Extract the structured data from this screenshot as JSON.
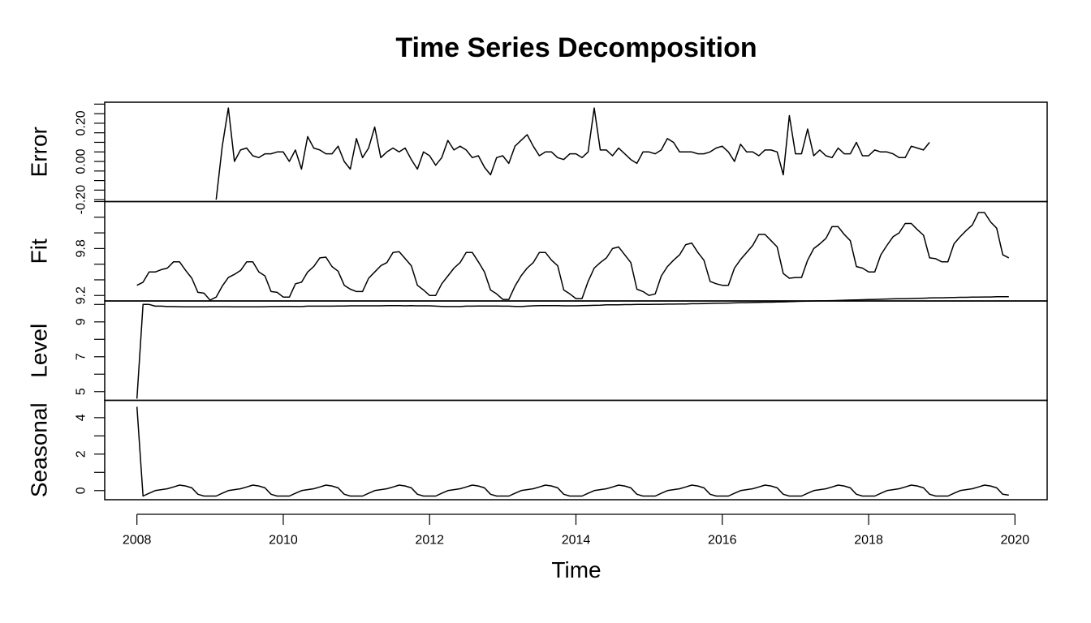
{
  "chart_data": {
    "type": "line",
    "title": "Time Series Decomposition",
    "xlabel": "Time",
    "xlim": [
      2007.56,
      2020.44
    ],
    "x_ticks": [
      2008,
      2010,
      2012,
      2014,
      2016,
      2018,
      2020
    ],
    "x_tick_labels": [
      "2008",
      "2010",
      "2012",
      "2014",
      "2016",
      "2018",
      "2020"
    ],
    "frequency": 12,
    "panels": [
      {
        "name": "Error",
        "ylabel": "Error",
        "ylim": [
          -0.21,
          0.31
        ],
        "y_major_ticks": [
          -0.2,
          0,
          0.2
        ],
        "y_major_labels": [
          "-0.20",
          "0.00",
          "0.20"
        ],
        "y_minor_ticks": [
          -0.15,
          -0.1,
          -0.05,
          0.05,
          0.1,
          0.15,
          0.25,
          0.3
        ],
        "start": 2009.083,
        "values": [
          -0.2,
          0.08,
          0.28,
          0.0,
          0.06,
          0.07,
          0.03,
          0.02,
          0.04,
          0.04,
          0.05,
          0.05,
          0.0,
          0.06,
          -0.04,
          0.13,
          0.07,
          0.06,
          0.04,
          0.04,
          0.08,
          0.0,
          -0.04,
          0.12,
          0.02,
          0.07,
          0.18,
          0.02,
          0.05,
          0.07,
          0.05,
          0.07,
          0.01,
          -0.04,
          0.05,
          0.03,
          -0.02,
          0.02,
          0.11,
          0.06,
          0.08,
          0.06,
          0.02,
          0.03,
          -0.03,
          -0.07,
          0.02,
          0.03,
          -0.01,
          0.08,
          0.11,
          0.14,
          0.08,
          0.03,
          0.05,
          0.05,
          0.02,
          0.01,
          0.04,
          0.04,
          0.02,
          0.05,
          0.28,
          0.06,
          0.06,
          0.03,
          0.07,
          0.04,
          0.01,
          -0.01,
          0.05,
          0.05,
          0.04,
          0.06,
          0.12,
          0.1,
          0.05,
          0.05,
          0.05,
          0.04,
          0.04,
          0.05,
          0.07,
          0.08,
          0.05,
          0.0,
          0.09,
          0.05,
          0.05,
          0.03,
          0.06,
          0.06,
          0.05,
          -0.07,
          0.24,
          0.04,
          0.04,
          0.17,
          0.03,
          0.06,
          0.03,
          0.02,
          0.07,
          0.04,
          0.04,
          0.1,
          0.03,
          0.03,
          0.06,
          0.05,
          0.05,
          0.04,
          0.02,
          0.02,
          0.08,
          0.07,
          0.06,
          0.1
        ]
      },
      {
        "name": "Fit",
        "ylabel": "Fit",
        "ylim": [
          9.13,
          10.4
        ],
        "y_major_ticks": [
          9.2,
          9.8
        ],
        "y_major_labels": [
          "9.2",
          "9.8"
        ],
        "y_minor_ticks": [
          9.4,
          9.6,
          10.0,
          10.2,
          10.4
        ],
        "start": 2008.0,
        "values": [
          9.33,
          9.37,
          9.5,
          9.5,
          9.53,
          9.55,
          9.63,
          9.63,
          9.52,
          9.42,
          9.24,
          9.23,
          9.14,
          9.18,
          9.32,
          9.43,
          9.47,
          9.52,
          9.63,
          9.63,
          9.5,
          9.45,
          9.25,
          9.24,
          9.18,
          9.18,
          9.35,
          9.37,
          9.5,
          9.57,
          9.68,
          9.69,
          9.57,
          9.51,
          9.33,
          9.28,
          9.25,
          9.25,
          9.42,
          9.5,
          9.58,
          9.62,
          9.75,
          9.76,
          9.67,
          9.58,
          9.33,
          9.27,
          9.2,
          9.2,
          9.35,
          9.45,
          9.55,
          9.62,
          9.75,
          9.75,
          9.63,
          9.5,
          9.27,
          9.22,
          9.15,
          9.15,
          9.32,
          9.45,
          9.55,
          9.62,
          9.75,
          9.75,
          9.65,
          9.58,
          9.27,
          9.22,
          9.16,
          9.16,
          9.38,
          9.55,
          9.62,
          9.68,
          9.8,
          9.82,
          9.72,
          9.62,
          9.28,
          9.25,
          9.2,
          9.22,
          9.45,
          9.57,
          9.65,
          9.72,
          9.85,
          9.87,
          9.75,
          9.65,
          9.38,
          9.35,
          9.33,
          9.33,
          9.55,
          9.66,
          9.75,
          9.84,
          9.98,
          9.98,
          9.9,
          9.82,
          9.48,
          9.42,
          9.43,
          9.43,
          9.65,
          9.8,
          9.86,
          9.93,
          10.08,
          10.08,
          9.98,
          9.9,
          9.57,
          9.55,
          9.5,
          9.5,
          9.72,
          9.84,
          9.95,
          10.0,
          10.12,
          10.12,
          10.04,
          9.97,
          9.68,
          9.67,
          9.63,
          9.63,
          9.86,
          9.95,
          10.03,
          10.1,
          10.26,
          10.26,
          10.14,
          10.06,
          9.72,
          9.68
        ]
      },
      {
        "name": "Level",
        "ylabel": "Level",
        "ylim": [
          4.5,
          10.2
        ],
        "y_major_ticks": [
          5,
          7,
          9
        ],
        "y_major_labels": [
          "5",
          "7",
          "9"
        ],
        "y_minor_ticks": [
          6,
          8,
          10
        ],
        "start": 2008.0,
        "values": [
          4.6,
          10.0,
          10.0,
          9.9,
          9.9,
          9.88,
          9.88,
          9.87,
          9.86,
          9.86,
          9.86,
          9.86,
          9.87,
          9.87,
          9.87,
          9.87,
          9.86,
          9.86,
          9.86,
          9.86,
          9.86,
          9.87,
          9.88,
          9.88,
          9.89,
          9.89,
          9.88,
          9.88,
          9.9,
          9.9,
          9.9,
          9.9,
          9.9,
          9.91,
          9.91,
          9.92,
          9.92,
          9.92,
          9.92,
          9.92,
          9.92,
          9.93,
          9.93,
          9.93,
          9.92,
          9.93,
          9.92,
          9.92,
          9.92,
          9.9,
          9.89,
          9.88,
          9.88,
          9.88,
          9.9,
          9.9,
          9.91,
          9.91,
          9.91,
          9.91,
          9.9,
          9.9,
          9.89,
          9.88,
          9.9,
          9.92,
          9.93,
          9.93,
          9.93,
          9.93,
          9.92,
          9.92,
          9.92,
          9.93,
          9.94,
          9.95,
          9.96,
          9.98,
          9.98,
          9.98,
          9.99,
          9.99,
          10.0,
          10.0,
          10.0,
          10.01,
          10.01,
          10.02,
          10.02,
          10.03,
          10.03,
          10.04,
          10.04,
          10.05,
          10.06,
          10.07,
          10.07,
          10.08,
          10.09,
          10.1,
          10.1,
          10.11,
          10.12,
          10.13,
          10.13,
          10.14,
          10.15,
          10.16,
          10.17,
          10.18,
          10.19,
          10.2,
          10.21,
          10.21,
          10.22,
          10.23,
          10.24,
          10.25,
          10.26,
          10.27,
          10.28,
          10.29,
          10.3,
          10.31,
          10.32,
          10.33,
          10.33,
          10.34,
          10.35,
          10.36,
          10.37,
          10.38,
          10.38,
          10.39,
          10.4,
          10.41,
          10.41,
          10.42,
          10.42,
          10.43,
          10.43,
          10.44,
          10.44,
          10.44
        ]
      },
      {
        "name": "Seasonal",
        "ylabel": "Seasonal",
        "ylim": [
          -0.5,
          4.95
        ],
        "y_major_ticks": [
          0,
          2,
          4
        ],
        "y_major_labels": [
          "0",
          "2",
          "4"
        ],
        "y_minor_ticks": [
          1,
          3
        ],
        "start": 2008.0,
        "values": [
          4.6,
          -0.3,
          -0.15,
          0.0,
          0.05,
          0.1,
          0.2,
          0.3,
          0.25,
          0.15,
          -0.2,
          -0.3,
          -0.3,
          -0.3,
          -0.15,
          0.0,
          0.05,
          0.1,
          0.2,
          0.3,
          0.25,
          0.15,
          -0.2,
          -0.3,
          -0.3,
          -0.3,
          -0.15,
          0.0,
          0.05,
          0.1,
          0.2,
          0.3,
          0.25,
          0.15,
          -0.2,
          -0.3,
          -0.3,
          -0.3,
          -0.15,
          0.0,
          0.05,
          0.1,
          0.2,
          0.3,
          0.25,
          0.15,
          -0.2,
          -0.3,
          -0.3,
          -0.3,
          -0.15,
          0.0,
          0.05,
          0.1,
          0.2,
          0.3,
          0.25,
          0.15,
          -0.2,
          -0.3,
          -0.3,
          -0.3,
          -0.15,
          0.0,
          0.05,
          0.1,
          0.2,
          0.3,
          0.25,
          0.15,
          -0.2,
          -0.3,
          -0.3,
          -0.3,
          -0.15,
          0.0,
          0.05,
          0.1,
          0.2,
          0.3,
          0.25,
          0.15,
          -0.2,
          -0.3,
          -0.3,
          -0.3,
          -0.15,
          0.0,
          0.05,
          0.1,
          0.2,
          0.3,
          0.25,
          0.15,
          -0.2,
          -0.3,
          -0.3,
          -0.3,
          -0.15,
          0.0,
          0.05,
          0.1,
          0.2,
          0.3,
          0.25,
          0.15,
          -0.2,
          -0.3,
          -0.3,
          -0.3,
          -0.15,
          0.0,
          0.05,
          0.1,
          0.2,
          0.3,
          0.25,
          0.15,
          -0.2,
          -0.3,
          -0.3,
          -0.3,
          -0.15,
          0.0,
          0.05,
          0.1,
          0.2,
          0.3,
          0.25,
          0.15,
          -0.2,
          -0.3,
          -0.3,
          -0.3,
          -0.15,
          0.0,
          0.05,
          0.1,
          0.2,
          0.3,
          0.25,
          0.15,
          -0.2,
          -0.25
        ]
      }
    ],
    "line_color": "#000000",
    "grid": false,
    "legend": "none"
  }
}
